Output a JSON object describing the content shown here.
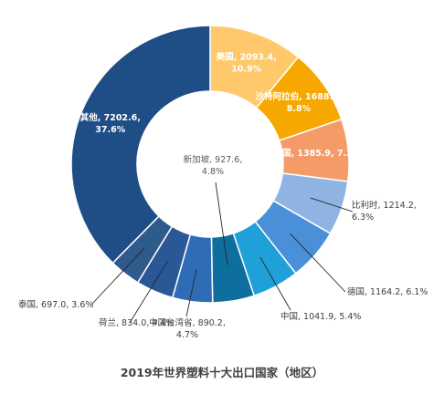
{
  "chart_data": {
    "type": "pie",
    "variant": "donut",
    "title": "2019年世界塑料十大出口国家（地区）",
    "slices": [
      {
        "label": "美国",
        "value": 2093.4,
        "percent": "10.9%",
        "color": "#FFC96B"
      },
      {
        "label": "沙特阿拉伯",
        "value": 1688.0,
        "percent": "8.8%",
        "color": "#F7A800"
      },
      {
        "label": "韩国",
        "value": 1385.9,
        "percent": "7.2%",
        "color": "#F59B68"
      },
      {
        "label": "比利时",
        "value": 1214.2,
        "percent": "6.3%",
        "color": "#8FB4E3"
      },
      {
        "label": "德国",
        "value": 1164.2,
        "percent": "6.1%",
        "color": "#4A90D9"
      },
      {
        "label": "中国",
        "value": 1041.9,
        "percent": "5.4%",
        "color": "#1FA0D8"
      },
      {
        "label": "新加坡",
        "value": 927.6,
        "percent": "4.8%",
        "color": "#0E6E9E"
      },
      {
        "label": "中国台湾省",
        "value": 890.2,
        "percent": "4.7%",
        "color": "#2E6DB5"
      },
      {
        "label": "荷兰",
        "value": 834.0,
        "percent": "4.4%",
        "color": "#2A5795"
      },
      {
        "label": "泰国",
        "value": 697.0,
        "percent": "3.6%",
        "color": "#2F5A8C"
      },
      {
        "label": "其他",
        "value": 7202.6,
        "percent": "37.6%",
        "color": "#1F4E86"
      }
    ]
  }
}
